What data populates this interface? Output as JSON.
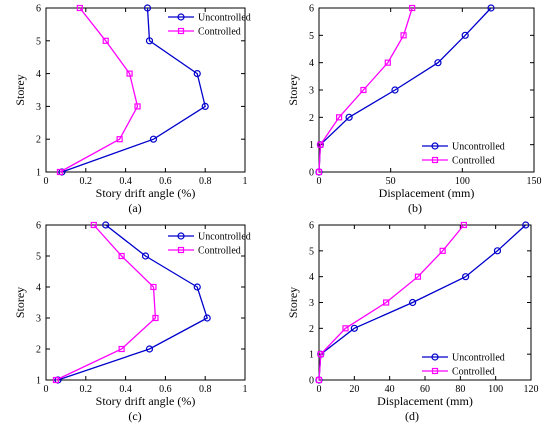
{
  "colors": {
    "uncontrolled": "#0000cc",
    "controlled": "#ff00ff"
  },
  "chart_data": [
    {
      "caption": "(a)",
      "type": "line",
      "xlabel": "Story drift angle (%)",
      "ylabel": "Storey",
      "xlim": [
        0,
        1
      ],
      "ylim": [
        1,
        6
      ],
      "xticks": [
        "0",
        "0.2",
        "0.4",
        "0.6",
        "0.8",
        "1"
      ],
      "yticks": [
        "1",
        "2",
        "3",
        "4",
        "5",
        "6"
      ],
      "legend": "top-right",
      "series": [
        {
          "name": "Uncontrolled",
          "marker": "circle",
          "x": [
            0.08,
            0.54,
            0.8,
            0.76,
            0.52,
            0.51
          ],
          "y": [
            1,
            2,
            3,
            4,
            5,
            6
          ]
        },
        {
          "name": "Controlled",
          "marker": "square",
          "x": [
            0.07,
            0.37,
            0.46,
            0.42,
            0.3,
            0.17
          ],
          "y": [
            1,
            2,
            3,
            4,
            5,
            6
          ]
        }
      ]
    },
    {
      "caption": "(b)",
      "type": "line",
      "xlabel": "Displacement (mm)",
      "ylabel": "Storey",
      "xlim": [
        0,
        150
      ],
      "ylim": [
        0,
        6
      ],
      "xticks": [
        "0",
        "50",
        "100",
        "150"
      ],
      "yticks": [
        "0",
        "1",
        "2",
        "3",
        "4",
        "5",
        "6"
      ],
      "legend": "bottom-right",
      "series": [
        {
          "name": "Uncontrolled",
          "marker": "circle",
          "x": [
            0,
            1,
            21,
            53,
            83,
            102,
            120
          ],
          "y": [
            0,
            1,
            2,
            3,
            4,
            5,
            6
          ]
        },
        {
          "name": "Controlled",
          "marker": "square",
          "x": [
            0,
            1,
            14,
            31,
            48,
            59,
            65
          ],
          "y": [
            0,
            1,
            2,
            3,
            4,
            5,
            6
          ]
        }
      ]
    },
    {
      "caption": "(c)",
      "type": "line",
      "xlabel": "Story drift angle (%)",
      "ylabel": "Storey",
      "xlim": [
        0,
        1
      ],
      "ylim": [
        1,
        6
      ],
      "xticks": [
        "0",
        "0.2",
        "0.4",
        "0.6",
        "0.8",
        "1"
      ],
      "yticks": [
        "1",
        "2",
        "3",
        "4",
        "5",
        "6"
      ],
      "legend": "top-right",
      "series": [
        {
          "name": "Uncontrolled",
          "marker": "circle",
          "x": [
            0.06,
            0.52,
            0.81,
            0.76,
            0.5,
            0.3
          ],
          "y": [
            1,
            2,
            3,
            4,
            5,
            6
          ]
        },
        {
          "name": "Controlled",
          "marker": "square",
          "x": [
            0.05,
            0.38,
            0.55,
            0.54,
            0.38,
            0.24
          ],
          "y": [
            1,
            2,
            3,
            4,
            5,
            6
          ]
        }
      ]
    },
    {
      "caption": "(d)",
      "type": "line",
      "xlabel": "Displacement (mm)",
      "ylabel": "Storey",
      "xlim": [
        0,
        120
      ],
      "ylim": [
        0,
        6
      ],
      "xticks": [
        "0",
        "20",
        "40",
        "60",
        "80",
        "100",
        "120"
      ],
      "yticks": [
        "0",
        "1",
        "2",
        "3",
        "4",
        "5",
        "6"
      ],
      "legend": "bottom-right",
      "series": [
        {
          "name": "Uncontrolled",
          "marker": "circle",
          "x": [
            0,
            1,
            20,
            53,
            83,
            101,
            117
          ],
          "y": [
            0,
            1,
            2,
            3,
            4,
            5,
            6
          ]
        },
        {
          "name": "Controlled",
          "marker": "square",
          "x": [
            0,
            1,
            15,
            38,
            56,
            70,
            82
          ],
          "y": [
            0,
            1,
            2,
            3,
            4,
            5,
            6
          ]
        }
      ]
    }
  ]
}
